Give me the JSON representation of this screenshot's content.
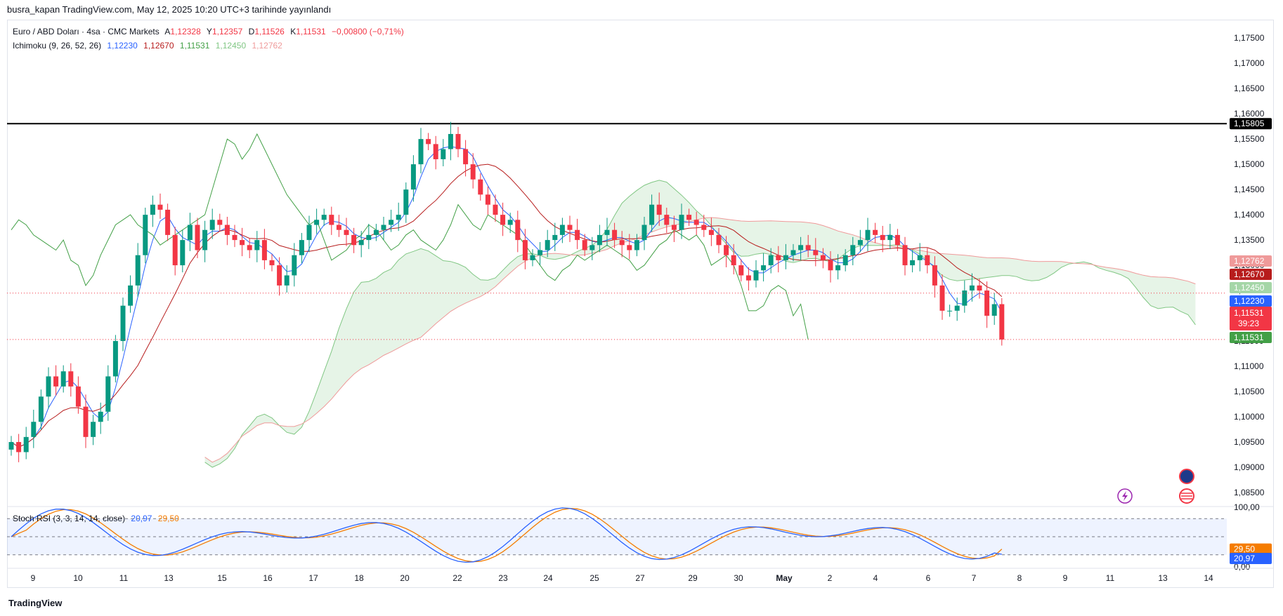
{
  "header": {
    "publisher": "busra_kapan TradingView.com, May 12, 2025 10:20 UTC+3 tarihinde yayınlandı"
  },
  "legend": {
    "symbol": "Euro / ABD Doları · 4sa · CMC Markets",
    "open_label": "A",
    "open": "1,12328",
    "high_label": "Y",
    "high": "1,12357",
    "low_label": "D",
    "low": "1,11526",
    "close_label": "K",
    "close": "1,11531",
    "change": "−0,00800 (−0,71%)",
    "ichimoku_label": "Ichimoku (9, 26, 52, 26)",
    "ichimoku_values": [
      "1,12230",
      "1,12670",
      "1,11531",
      "1,12450",
      "1,12762"
    ],
    "stoch_label": "Stoch RSI (3, 3, 14, 14, close)",
    "stoch_k": "20,97",
    "stoch_d": "29,50"
  },
  "footer": {
    "logo_text": "TradingView"
  },
  "colors": {
    "up": "#089981",
    "down": "#f23645",
    "tenkan": "#2962ff",
    "kijun": "#b71c1c",
    "chikou": "#43a047",
    "span_a": "#81c784",
    "span_b": "#ef9a9a",
    "stoch_k": "#2962ff",
    "stoch_d": "#f57c00",
    "resistance": "#000000"
  },
  "chart_data": {
    "type": "candlestick",
    "symbol": "EURUSD",
    "timeframe": "4h",
    "y_axis_ticks": [
      "1,17500",
      "1,17000",
      "1,16500",
      "1,16000",
      "1,15500",
      "1,15000",
      "1,14500",
      "1,14000",
      "1,13500",
      "1,13000",
      "1,12500",
      "1,12000",
      "1,11500",
      "1,11000",
      "1,10500",
      "1,10000",
      "1,09500",
      "1,09000",
      "1,08500"
    ],
    "x_axis_labels": [
      "9",
      "10",
      "11",
      "13",
      "15",
      "16",
      "17",
      "18",
      "20",
      "22",
      "23",
      "24",
      "25",
      "27",
      "29",
      "30",
      "May",
      "2",
      "4",
      "6",
      "7",
      "8",
      "9",
      "11",
      "13",
      "14"
    ],
    "ylim": [
      1.0825,
      1.1785
    ],
    "horizontal_line": {
      "value": 1.15805,
      "label": "1,15805"
    },
    "price_tags": [
      {
        "label": "1,12762",
        "value": 1.12762,
        "color": "#ef9a9a"
      },
      {
        "label": "1,12670",
        "value": 1.1267,
        "color": "#b71c1c"
      },
      {
        "label": "1,12450",
        "value": 1.1245,
        "color": "#a5d6a7"
      },
      {
        "label": "1,12230",
        "value": 1.1223,
        "color": "#2962ff"
      },
      {
        "label": "1,11531",
        "value": 1.11531,
        "color": "#f23645",
        "countdown": "39:23"
      },
      {
        "label": "1,11531",
        "value": 1.11531,
        "color": "#43a047"
      }
    ],
    "candles_close": [
      1.095,
      1.093,
      1.096,
      1.099,
      1.104,
      1.108,
      1.106,
      1.109,
      1.106,
      1.102,
      1.096,
      1.099,
      1.101,
      1.108,
      1.115,
      1.122,
      1.126,
      1.132,
      1.14,
      1.142,
      1.141,
      1.136,
      1.13,
      1.135,
      1.138,
      1.133,
      1.137,
      1.139,
      1.138,
      1.136,
      1.135,
      1.134,
      1.133,
      1.135,
      1.131,
      1.13,
      1.126,
      1.128,
      1.132,
      1.135,
      1.138,
      1.139,
      1.14,
      1.138,
      1.137,
      1.136,
      1.134,
      1.135,
      1.136,
      1.137,
      1.138,
      1.139,
      1.14,
      1.145,
      1.15,
      1.155,
      1.154,
      1.151,
      1.153,
      1.156,
      1.153,
      1.15,
      1.147,
      1.144,
      1.142,
      1.14,
      1.138,
      1.139,
      1.135,
      1.131,
      1.132,
      1.133,
      1.135,
      1.136,
      1.138,
      1.137,
      1.135,
      1.133,
      1.134,
      1.136,
      1.137,
      1.135,
      1.134,
      1.133,
      1.135,
      1.138,
      1.142,
      1.14,
      1.138,
      1.137,
      1.14,
      1.139,
      1.138,
      1.137,
      1.136,
      1.134,
      1.132,
      1.13,
      1.128,
      1.127,
      1.129,
      1.13,
      1.132,
      1.131,
      1.132,
      1.133,
      1.134,
      1.133,
      1.132,
      1.131,
      1.129,
      1.13,
      1.132,
      1.134,
      1.135,
      1.137,
      1.136,
      1.135,
      1.136,
      1.134,
      1.13,
      1.131,
      1.132,
      1.13,
      1.126,
      1.121,
      1.121,
      1.122,
      1.125,
      1.126,
      1.125,
      1.12,
      1.1223,
      1.1153
    ],
    "stoch_rsi": {
      "k_last": 20.97,
      "d_last": 29.5,
      "levels": [
        80,
        50,
        20
      ],
      "axis_labels": [
        "100,00",
        "0,00"
      ]
    }
  }
}
